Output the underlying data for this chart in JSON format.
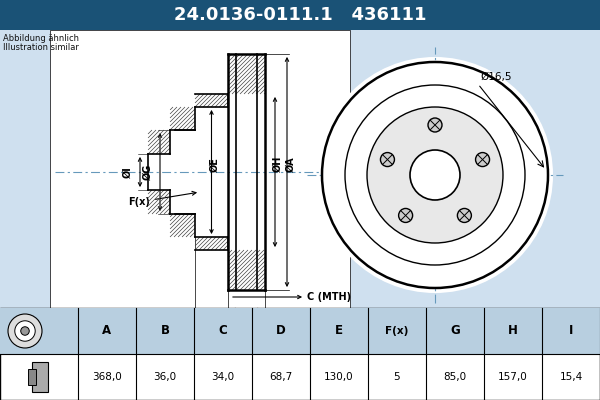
{
  "title_part": "24.0136-0111.1",
  "title_ref": "436111",
  "title_bg": "#1a5276",
  "title_fg": "#ffffff",
  "subtitle1": "Abbildung ähnlich",
  "subtitle2": "Illustration similar",
  "dim_label": "Ø16,5",
  "table_headers": [
    "A",
    "B",
    "C",
    "D",
    "E",
    "F(x)",
    "G",
    "H",
    "I"
  ],
  "table_values": [
    "368,0",
    "36,0",
    "34,0",
    "68,7",
    "130,0",
    "5",
    "85,0",
    "157,0",
    "15,4"
  ],
  "bg_color": "#cfe0ef",
  "line_color": "#000000",
  "cl_color": "#6699bb",
  "table_bg_header": "#b8cfe0",
  "table_bg_value": "#ffffff"
}
